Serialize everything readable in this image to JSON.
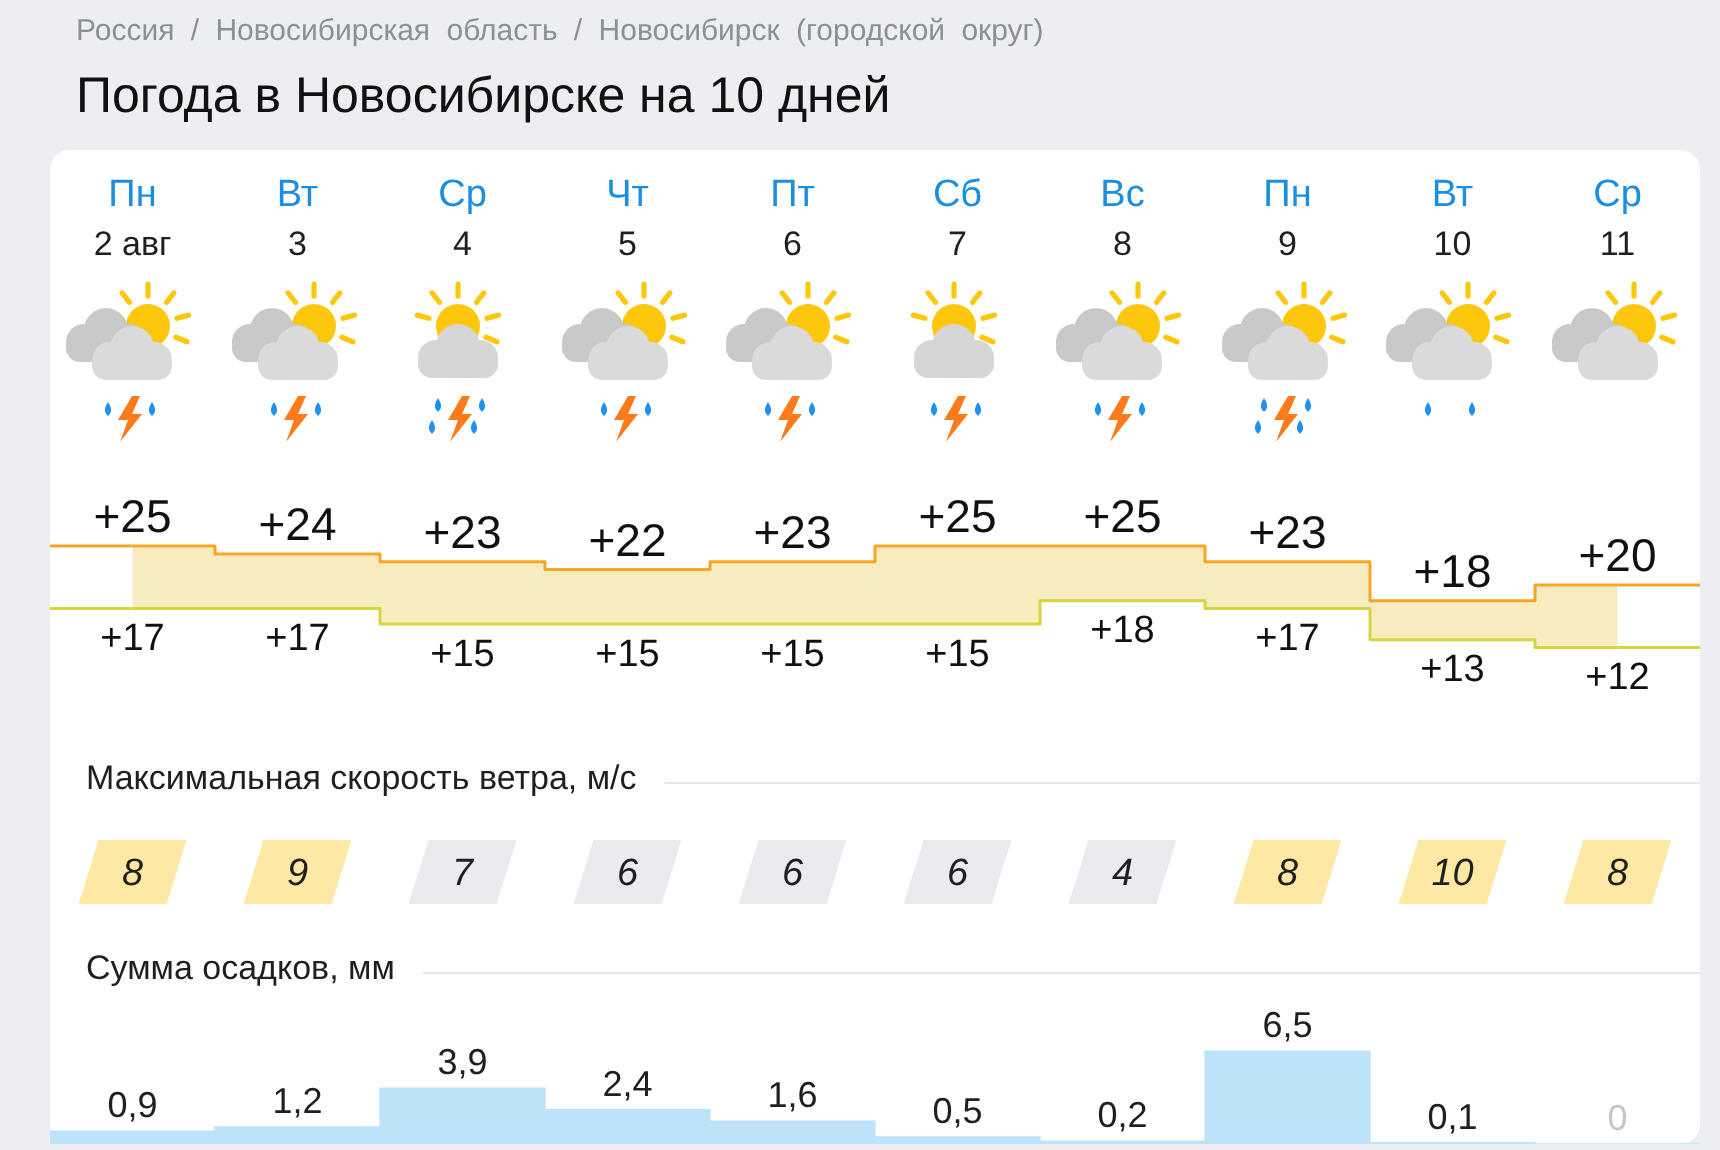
{
  "chart_data": [
    {
      "type": "step",
      "title": "Погода в Новосибирске на 10 дней",
      "annotations": [
        "Россия / Новосибирская область / Новосибирск (городской округ)"
      ],
      "categories": [
        "Пн\n2 авг",
        "Вт\n3",
        "Ср\n4",
        "Чт\n5",
        "Пт\n6",
        "Сб\n7",
        "Вс\n8",
        "Пн\n9",
        "Вт\n10",
        "Ср\n11"
      ],
      "tick_labels": "x",
      "series": [
        {
          "values": [
            25,
            24,
            23,
            22,
            23,
            25,
            25,
            23,
            18,
            20
          ],
          "lower": [
            17,
            17,
            15,
            15,
            15,
            15,
            18,
            17,
            13,
            12
          ],
          "upper": [
            25,
            24,
            23,
            22,
            23,
            25,
            25,
            23,
            18,
            20
          ],
          "color": "#f6a623",
          "value_labels": [
            "+25",
            "+24",
            "+23",
            "+22",
            "+23",
            "+25",
            "+25",
            "+23",
            "+18",
            "+20"
          ]
        },
        {
          "values": [
            17,
            17,
            15,
            15,
            15,
            15,
            18,
            17,
            13,
            12
          ],
          "color": "#d4d63c",
          "value_labels": [
            "+17",
            "+17",
            "+15",
            "+15",
            "+15",
            "+15",
            "+18",
            "+17",
            "+13",
            "+12"
          ]
        }
      ]
    },
    {
      "type": "other",
      "title": "Максимальная скорость ветра, м/с",
      "values": [
        8,
        9,
        7,
        6,
        6,
        6,
        4,
        8,
        10,
        8
      ],
      "colors": [
        "#fde8a4",
        "#fde8a4",
        "#e9ebee",
        "#e9ebee",
        "#e9ebee",
        "#e9ebee",
        "#e9ebee",
        "#fde8a4",
        "#fde8a4",
        "#fde8a4"
      ],
      "data_labels": true
    },
    {
      "type": "bar",
      "title": "Сумма осадков, мм",
      "categories": [
        null,
        null,
        null,
        null,
        null,
        null,
        null,
        null,
        null,
        null
      ],
      "values": [
        0.9,
        1.2,
        3.9,
        2.4,
        1.6,
        0.5,
        0.2,
        6.5,
        0.1,
        0
      ],
      "color": "#bde3fb",
      "value_labels": [
        "0,9",
        "1,2",
        "3,9",
        "2,4",
        "1,6",
        "0,5",
        "0,2",
        "6,5",
        "0,1",
        "0"
      ]
    }
  ]
}
